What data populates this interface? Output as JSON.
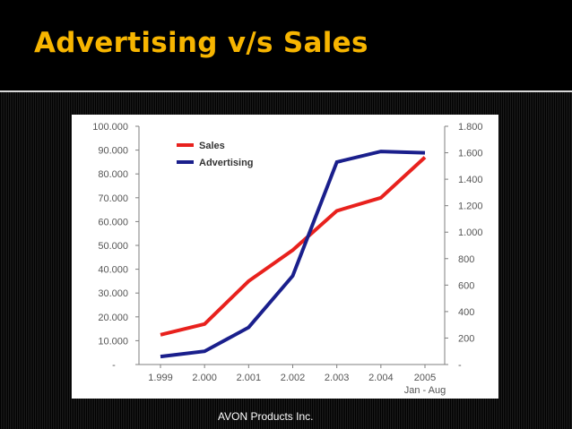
{
  "slide": {
    "title": "Advertising v/s Sales",
    "caption": "AVON Products Inc."
  },
  "chart_data": {
    "type": "line",
    "categories": [
      "1.999",
      "2.000",
      "2.001",
      "2.002",
      "2.003",
      "2.004",
      "2005"
    ],
    "category_sublabels": [
      "",
      "",
      "",
      "",
      "",
      "",
      "Jan - Aug"
    ],
    "title": "",
    "xlabel": "",
    "ylabel": "",
    "y_left": {
      "range": [
        0,
        100000
      ],
      "tick_labels": [
        "-",
        "10.000",
        "20.000",
        "30.000",
        "40.000",
        "50.000",
        "60.000",
        "70.000",
        "80.000",
        "90.000",
        "100.000"
      ]
    },
    "y_right": {
      "range": [
        0,
        1800
      ],
      "tick_labels": [
        "-",
        "200",
        "400",
        "600",
        "800",
        "1.000",
        "1.200",
        "1.400",
        "1.600",
        "1.800"
      ]
    },
    "grid": false,
    "legend_position": "top-left",
    "series": [
      {
        "name": "Sales",
        "axis": "left",
        "color": "#e8211d",
        "values": [
          12500,
          17000,
          35000,
          48000,
          64500,
          70000,
          87000
        ]
      },
      {
        "name": "Advertising",
        "axis": "right",
        "color": "#1a1f8c",
        "values": [
          60,
          100,
          280,
          670,
          1530,
          1610,
          1600
        ]
      }
    ]
  }
}
